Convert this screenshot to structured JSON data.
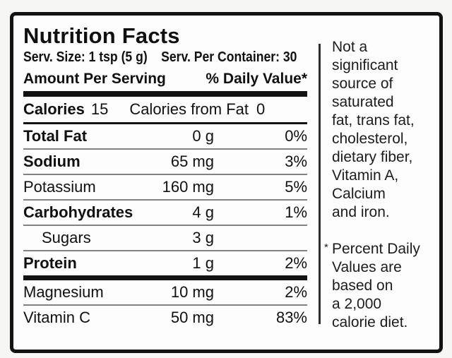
{
  "label": {
    "title": "Nutrition Facts",
    "serving_size": "Serv. Size: 1 tsp (5 g)",
    "servings_per_container": "Serv. Per Container: 30",
    "amount_header": "Amount Per Serving",
    "daily_value_header": "% Daily Value*",
    "calories": {
      "label": "Calories",
      "value": "15",
      "from_fat_label": "Calories from Fat",
      "from_fat_value": "0"
    },
    "rows": [
      {
        "label": "Total Fat",
        "amount": "0 g",
        "dv": "0%"
      },
      {
        "label": "Sodium",
        "amount": "65 mg",
        "dv": "3%"
      },
      {
        "label": "Potassium",
        "amount": "160 mg",
        "dv": "5%"
      },
      {
        "label": "Carbohydrates",
        "amount": "4 g",
        "dv": "1%"
      },
      {
        "label": "Sugars",
        "amount": "3 g",
        "dv": ""
      },
      {
        "label": "Protein",
        "amount": "1 g",
        "dv": "2%"
      },
      {
        "label": "Magnesium",
        "amount": "10 mg",
        "dv": "2%"
      },
      {
        "label": "Vitamin C",
        "amount": "50 mg",
        "dv": "83%"
      }
    ],
    "side": {
      "not_significant_lines": [
        "Not a",
        "significant",
        "source of",
        "saturated",
        "fat, trans fat,",
        "cholesterol,",
        "dietary fiber,",
        "Vitamin A,",
        "Calcium",
        "and iron."
      ],
      "footnote_marker": "*",
      "footnote_lines": [
        "Percent Daily",
        "Values are",
        "based on",
        "a 2,000",
        "calorie diet."
      ]
    },
    "colors": {
      "text": "#101010",
      "thick_rule": "#121212",
      "thin_rule": "#828282"
    }
  }
}
